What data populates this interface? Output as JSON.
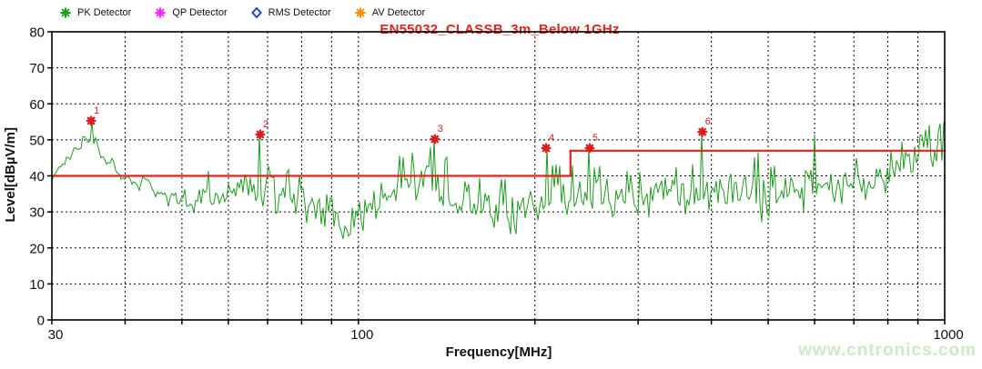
{
  "legend": {
    "items": [
      {
        "label": "PK Detector",
        "icon": "pk-asterisk",
        "color": "#17a017"
      },
      {
        "label": "QP Detector",
        "icon": "qp-asterisk",
        "color": "#ff22ff"
      },
      {
        "label": "RMS Detector",
        "icon": "rms-diamond",
        "color": "#2244cc"
      },
      {
        "label": "AV Detector",
        "icon": "av-asterisk",
        "color": "#ff8c00"
      }
    ]
  },
  "watermark": {
    "text": "www.cntronics.com",
    "color": "#cde9c6"
  },
  "colors": {
    "title": "#e2241e",
    "limit_line": "#e2241e",
    "trace": "#1f9b1f",
    "marker": "#d81e1e",
    "grid": "#000000",
    "axis_text": "#111111"
  },
  "chart_data": {
    "type": "line",
    "title": "EN55032_CLASSB_3m_Below 1GHz",
    "xlabel": "Frequency[MHz]",
    "ylabel": "Level[dBµV/m]",
    "x_scale": "log",
    "xlim": [
      30,
      1000
    ],
    "ylim": [
      0,
      80
    ],
    "y_ticks": [
      0,
      10,
      20,
      30,
      40,
      50,
      60,
      70,
      80
    ],
    "x_major_ticks": [
      30,
      100,
      1000
    ],
    "x_minor_ticks": [
      40,
      50,
      60,
      70,
      80,
      90,
      200,
      300,
      400,
      500,
      600,
      700,
      800,
      900
    ],
    "grid": true,
    "legend_position": "top",
    "limit_line": {
      "name": "EN55032 Class B 3m limit",
      "points_mhz_dbuvm": [
        [
          30,
          40
        ],
        [
          230,
          40
        ],
        [
          230,
          47
        ],
        [
          1000,
          47
        ]
      ]
    },
    "trace": {
      "name": "PK Detector",
      "noise_seed": 1337,
      "envelope_mhz_lo_hi": [
        [
          30,
          37,
          43
        ],
        [
          31.5,
          41,
          48
        ],
        [
          33,
          45,
          53
        ],
        [
          34.5,
          48,
          55
        ],
        [
          36,
          45,
          54
        ],
        [
          37.5,
          40,
          50
        ],
        [
          39,
          35,
          45
        ],
        [
          41,
          34,
          44
        ],
        [
          44,
          33,
          43
        ],
        [
          48,
          30,
          40
        ],
        [
          52,
          29,
          39
        ],
        [
          56,
          29,
          42
        ],
        [
          60,
          29,
          45
        ],
        [
          64,
          29,
          45
        ],
        [
          68,
          29,
          46
        ],
        [
          73,
          28,
          44
        ],
        [
          78,
          27,
          42
        ],
        [
          84,
          24,
          39
        ],
        [
          90,
          20,
          35
        ],
        [
          96,
          20,
          34
        ],
        [
          103,
          25,
          39
        ],
        [
          110,
          28,
          43
        ],
        [
          118,
          30,
          46
        ],
        [
          127,
          31,
          48
        ],
        [
          136,
          30,
          48
        ],
        [
          146,
          27,
          45
        ],
        [
          157,
          24,
          43
        ],
        [
          168,
          24,
          41
        ],
        [
          180,
          20,
          40
        ],
        [
          192,
          24,
          41
        ],
        [
          205,
          26,
          44
        ],
        [
          220,
          27,
          43
        ],
        [
          235,
          28,
          44
        ],
        [
          250,
          28,
          44
        ],
        [
          265,
          28,
          44
        ],
        [
          280,
          28,
          46
        ],
        [
          295,
          24,
          42
        ],
        [
          310,
          25,
          42
        ],
        [
          325,
          28,
          44
        ],
        [
          340,
          28,
          45
        ],
        [
          355,
          28,
          44
        ],
        [
          372,
          28,
          45
        ],
        [
          390,
          28,
          45
        ],
        [
          410,
          27,
          45
        ],
        [
          430,
          27,
          46
        ],
        [
          455,
          26,
          45
        ],
        [
          480,
          26,
          46
        ],
        [
          505,
          27,
          44
        ],
        [
          530,
          28,
          44
        ],
        [
          560,
          28,
          46
        ],
        [
          590,
          29,
          48
        ],
        [
          620,
          30,
          45
        ],
        [
          650,
          31,
          45
        ],
        [
          680,
          31,
          45
        ],
        [
          710,
          32,
          45
        ],
        [
          745,
          33,
          46
        ],
        [
          780,
          34,
          47
        ],
        [
          815,
          36,
          48
        ],
        [
          850,
          38,
          50
        ],
        [
          885,
          39,
          52
        ],
        [
          920,
          41,
          53
        ],
        [
          955,
          42,
          55
        ],
        [
          1000,
          44,
          57
        ]
      ],
      "unlabeled_spikes_mhz_dbuvm": [
        [
          598,
          51.5
        ],
        [
          480,
          46.5
        ],
        [
          845,
          49.5
        ]
      ]
    },
    "peak_markers": [
      {
        "label": "1",
        "freq_mhz": 35,
        "level_dbuvm": 55.3
      },
      {
        "label": "2",
        "freq_mhz": 68,
        "level_dbuvm": 51.5
      },
      {
        "label": "3",
        "freq_mhz": 135,
        "level_dbuvm": 50.2
      },
      {
        "label": "4",
        "freq_mhz": 209,
        "level_dbuvm": 47.7
      },
      {
        "label": "5",
        "freq_mhz": 248,
        "level_dbuvm": 47.7
      },
      {
        "label": "6",
        "freq_mhz": 386,
        "level_dbuvm": 52.2
      }
    ]
  }
}
